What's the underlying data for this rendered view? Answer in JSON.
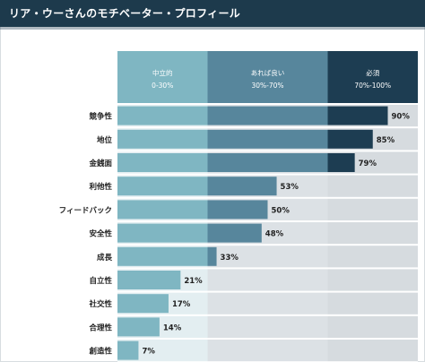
{
  "page_title": "リア・ウーさんのモチベーター・プロフィール",
  "chart_data": {
    "type": "bar",
    "orientation": "horizontal",
    "xlim": [
      0,
      100
    ],
    "bands": [
      {
        "label": "中立的",
        "range_label": "0-30%",
        "from": 0,
        "to": 30,
        "header_color": "#7fb6c2",
        "band_color": "#e3eef1",
        "bar_color": "#7fb6c2"
      },
      {
        "label": "あれば良い",
        "range_label": "30%-70%",
        "from": 30,
        "to": 70,
        "header_color": "#57869c",
        "band_color": "#dce1e5",
        "bar_color": "#57869c"
      },
      {
        "label": "必須",
        "range_label": "70%-100%",
        "from": 70,
        "to": 100,
        "header_color": "#1d3d52",
        "band_color": "#d6dbdf",
        "bar_color": "#1d3d52"
      }
    ],
    "categories": [
      "競争性",
      "地位",
      "金銭面",
      "利他性",
      "フィードバック",
      "安全性",
      "成長",
      "自立性",
      "社交性",
      "合理性",
      "創造性"
    ],
    "values": [
      90,
      85,
      79,
      53,
      50,
      48,
      33,
      21,
      17,
      14,
      7
    ],
    "value_labels": [
      "90%",
      "85%",
      "79%",
      "53%",
      "50%",
      "48%",
      "33%",
      "21%",
      "17%",
      "14%",
      "7%"
    ]
  }
}
